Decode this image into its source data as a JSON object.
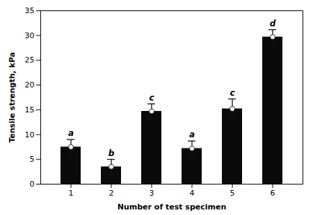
{
  "chart_data": {
    "type": "bar",
    "categories": [
      "1",
      "2",
      "3",
      "4",
      "5",
      "6"
    ],
    "values": [
      7.5,
      3.5,
      14.7,
      7.2,
      15.2,
      29.7
    ],
    "errors": [
      1.5,
      1.5,
      1.5,
      1.5,
      2.0,
      1.5
    ],
    "letters": [
      "a",
      "b",
      "c",
      "a",
      "c",
      "d"
    ],
    "color": "#0a0a0a",
    "xlabel": "Number of test specimen",
    "ylabel": "Tensile strength, kPa",
    "ylim": [
      0,
      35
    ],
    "yticks": [
      0,
      5,
      10,
      15,
      20,
      25,
      30,
      35
    ],
    "grid": false
  }
}
